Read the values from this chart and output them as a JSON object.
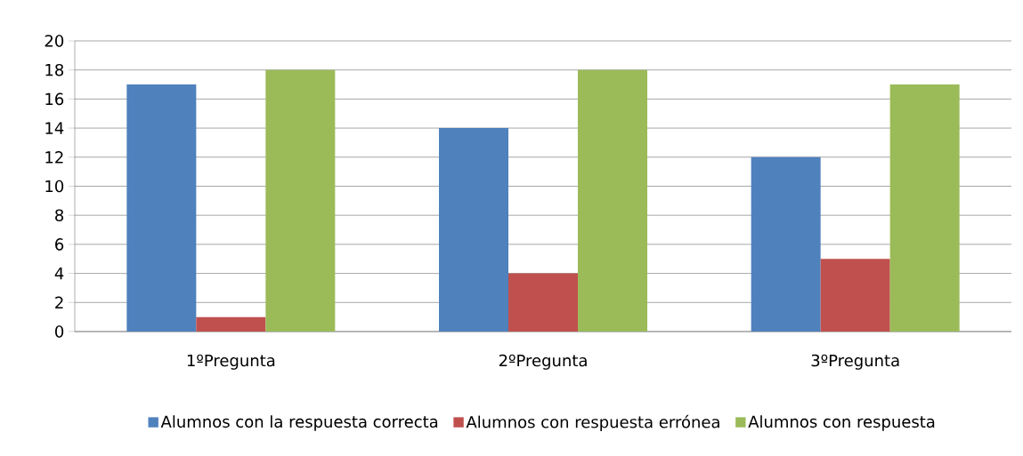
{
  "chart_data": {
    "type": "bar",
    "categories": [
      "1ºPregunta",
      "2ºPregunta",
      "3ºPregunta"
    ],
    "series": [
      {
        "name": "Alumnos con la respuesta correcta",
        "color": "#4f81bd",
        "values": [
          17,
          14,
          12
        ]
      },
      {
        "name": "Alumnos con respuesta errónea",
        "color": "#c0504d",
        "values": [
          1,
          4,
          5
        ]
      },
      {
        "name": "Alumnos con respuesta",
        "color": "#9bbb59",
        "values": [
          18,
          18,
          17
        ]
      }
    ],
    "ylim": [
      0,
      20
    ],
    "yticks": [
      0,
      2,
      4,
      6,
      8,
      10,
      12,
      14,
      16,
      18,
      20
    ],
    "grid": "y",
    "legend": "bottom"
  }
}
